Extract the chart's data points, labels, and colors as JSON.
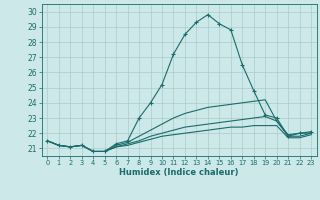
{
  "xlabel": "Humidex (Indice chaleur)",
  "xlim": [
    -0.5,
    23.5
  ],
  "ylim": [
    20.5,
    30.5
  ],
  "yticks": [
    21,
    22,
    23,
    24,
    25,
    26,
    27,
    28,
    29,
    30
  ],
  "xticks": [
    0,
    1,
    2,
    3,
    4,
    5,
    6,
    7,
    8,
    9,
    10,
    11,
    12,
    13,
    14,
    15,
    16,
    17,
    18,
    19,
    20,
    21,
    22,
    23
  ],
  "bg_color": "#cce8e8",
  "grid_color": "#aacccc",
  "line_color": "#1a6b6b",
  "series": [
    {
      "x": [
        0,
        1,
        2,
        3,
        4,
        5,
        6,
        7,
        8,
        9,
        10,
        11,
        12,
        13,
        14,
        15,
        16,
        17,
        18,
        19,
        20,
        21,
        22,
        23
      ],
      "y": [
        21.5,
        21.2,
        21.1,
        21.2,
        20.8,
        20.8,
        21.3,
        21.5,
        23.0,
        24.0,
        25.2,
        27.2,
        28.5,
        29.3,
        29.8,
        29.2,
        28.8,
        26.5,
        24.8,
        23.2,
        23.0,
        21.8,
        22.0,
        22.1
      ],
      "marker": "+"
    },
    {
      "x": [
        0,
        1,
        2,
        3,
        4,
        5,
        6,
        7,
        8,
        9,
        10,
        11,
        12,
        13,
        14,
        15,
        16,
        17,
        18,
        19,
        20,
        21,
        22,
        23
      ],
      "y": [
        21.5,
        21.2,
        21.1,
        21.2,
        20.8,
        20.8,
        21.2,
        21.4,
        21.8,
        22.2,
        22.6,
        23.0,
        23.3,
        23.5,
        23.7,
        23.8,
        23.9,
        24.0,
        24.1,
        24.2,
        22.8,
        21.9,
        22.0,
        22.0
      ],
      "marker": null
    },
    {
      "x": [
        0,
        1,
        2,
        3,
        4,
        5,
        6,
        7,
        8,
        9,
        10,
        11,
        12,
        13,
        14,
        15,
        16,
        17,
        18,
        19,
        20,
        21,
        22,
        23
      ],
      "y": [
        21.5,
        21.2,
        21.1,
        21.2,
        20.8,
        20.8,
        21.1,
        21.3,
        21.5,
        21.8,
        22.0,
        22.2,
        22.4,
        22.5,
        22.6,
        22.7,
        22.8,
        22.9,
        23.0,
        23.1,
        22.8,
        21.8,
        21.8,
        22.0
      ],
      "marker": null
    },
    {
      "x": [
        0,
        1,
        2,
        3,
        4,
        5,
        6,
        7,
        8,
        9,
        10,
        11,
        12,
        13,
        14,
        15,
        16,
        17,
        18,
        19,
        20,
        21,
        22,
        23
      ],
      "y": [
        21.5,
        21.2,
        21.1,
        21.2,
        20.8,
        20.8,
        21.1,
        21.2,
        21.4,
        21.6,
        21.8,
        21.9,
        22.0,
        22.1,
        22.2,
        22.3,
        22.4,
        22.4,
        22.5,
        22.5,
        22.5,
        21.7,
        21.7,
        21.9
      ],
      "marker": null
    }
  ]
}
